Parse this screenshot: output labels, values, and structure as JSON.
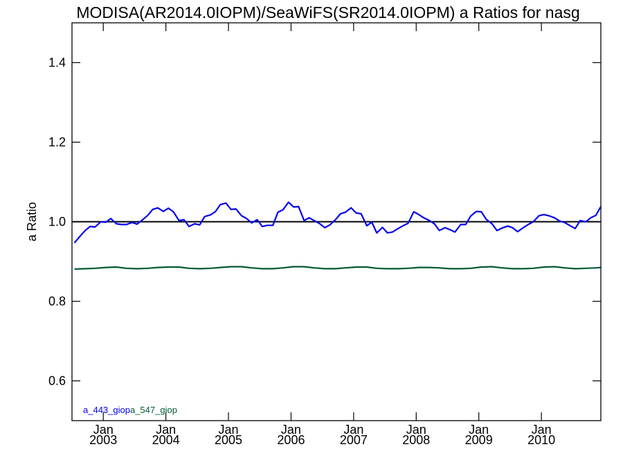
{
  "chart_data": {
    "type": "line",
    "title": "MODISA(AR2014.0IOPM)/SeaWiFS(SR2014.0IOPM)  a Ratios for nasg",
    "xlabel": "",
    "ylabel": "a Ratio",
    "xlim": [
      2002.5,
      2010.95
    ],
    "ylim": [
      0.5,
      1.5
    ],
    "y_ticks": [
      0.6,
      0.8,
      1.0,
      1.2,
      1.4
    ],
    "y_tick_labels": [
      "0.6",
      "0.8",
      "1.0",
      "1.2",
      "1.4"
    ],
    "x_ticks": [
      2003.0,
      2004.0,
      2005.0,
      2006.0,
      2007.0,
      2008.0,
      2009.0,
      2010.0
    ],
    "x_tick_month": "Jan",
    "x_tick_years": [
      "2003",
      "2004",
      "2005",
      "2006",
      "2007",
      "2008",
      "2009",
      "2010"
    ],
    "reference_line": 1.0,
    "grid": false,
    "legend_position": "bottom-left",
    "series": [
      {
        "name": "a_443_giop",
        "color": "#0000ee",
        "x": [
          2002.54,
          2002.62,
          2002.71,
          2002.79,
          2002.87,
          2002.96,
          2003.04,
          2003.12,
          2003.21,
          2003.29,
          2003.37,
          2003.46,
          2003.54,
          2003.62,
          2003.71,
          2003.79,
          2003.87,
          2003.96,
          2004.04,
          2004.12,
          2004.21,
          2004.29,
          2004.37,
          2004.46,
          2004.54,
          2004.62,
          2004.71,
          2004.79,
          2004.87,
          2004.96,
          2005.04,
          2005.12,
          2005.21,
          2005.29,
          2005.37,
          2005.46,
          2005.54,
          2005.62,
          2005.71,
          2005.79,
          2005.87,
          2005.96,
          2006.04,
          2006.12,
          2006.21,
          2006.29,
          2006.37,
          2006.46,
          2006.54,
          2006.62,
          2006.71,
          2006.79,
          2006.87,
          2006.96,
          2007.04,
          2007.12,
          2007.21,
          2007.29,
          2007.37,
          2007.46,
          2007.54,
          2007.62,
          2007.71,
          2007.79,
          2007.87,
          2007.96,
          2008.04,
          2008.12,
          2008.21,
          2008.29,
          2008.37,
          2008.46,
          2008.54,
          2008.62,
          2008.71,
          2008.79,
          2008.87,
          2008.96,
          2009.04,
          2009.12,
          2009.21,
          2009.29,
          2009.37,
          2009.46,
          2009.54,
          2009.62,
          2009.71,
          2009.79,
          2009.87,
          2009.96,
          2010.04,
          2010.12,
          2010.21,
          2010.29,
          2010.37,
          2010.46,
          2010.54,
          2010.62,
          2010.71,
          2010.79,
          2010.87,
          2010.95
        ],
        "values": [
          0.947,
          0.962,
          0.978,
          0.988,
          0.987,
          1.0,
          0.999,
          1.008,
          0.995,
          0.993,
          0.993,
          0.998,
          0.994,
          1.004,
          1.016,
          1.031,
          1.035,
          1.026,
          1.034,
          1.025,
          1.003,
          1.005,
          0.988,
          0.995,
          0.992,
          1.013,
          1.017,
          1.025,
          1.043,
          1.047,
          1.031,
          1.032,
          1.015,
          1.008,
          0.997,
          1.005,
          0.988,
          0.991,
          0.991,
          1.024,
          1.03,
          1.049,
          1.037,
          1.038,
          1.003,
          1.01,
          1.003,
          0.995,
          0.985,
          0.992,
          1.005,
          1.02,
          1.024,
          1.035,
          1.022,
          1.02,
          0.99,
          0.999,
          0.972,
          0.986,
          0.972,
          0.974,
          0.983,
          0.99,
          0.996,
          1.025,
          1.018,
          1.01,
          1.003,
          0.995,
          0.978,
          0.985,
          0.98,
          0.974,
          0.993,
          0.993,
          1.014,
          1.026,
          1.025,
          1.006,
          0.995,
          0.978,
          0.984,
          0.989,
          0.985,
          0.975,
          0.985,
          0.993,
          1.0,
          1.015,
          1.018,
          1.015,
          1.01,
          1.002,
          0.998,
          0.99,
          0.983,
          1.003,
          1.0,
          1.01,
          1.016,
          1.038
        ]
      },
      {
        "name": "a_547_giop",
        "color": "#005a32",
        "x": [
          2002.54,
          2002.71,
          2002.87,
          2003.04,
          2003.21,
          2003.37,
          2003.54,
          2003.71,
          2003.87,
          2004.04,
          2004.21,
          2004.37,
          2004.54,
          2004.71,
          2004.87,
          2005.04,
          2005.21,
          2005.37,
          2005.54,
          2005.71,
          2005.87,
          2006.04,
          2006.21,
          2006.37,
          2006.54,
          2006.71,
          2006.87,
          2007.04,
          2007.21,
          2007.37,
          2007.54,
          2007.71,
          2007.87,
          2008.04,
          2008.21,
          2008.37,
          2008.54,
          2008.71,
          2008.87,
          2009.04,
          2009.21,
          2009.37,
          2009.54,
          2009.71,
          2009.87,
          2010.04,
          2010.21,
          2010.37,
          2010.54,
          2010.71,
          2010.87,
          2010.95
        ],
        "values": [
          0.881,
          0.882,
          0.883,
          0.885,
          0.886,
          0.883,
          0.882,
          0.883,
          0.885,
          0.886,
          0.886,
          0.883,
          0.882,
          0.883,
          0.885,
          0.887,
          0.887,
          0.884,
          0.882,
          0.882,
          0.884,
          0.887,
          0.887,
          0.884,
          0.882,
          0.882,
          0.884,
          0.886,
          0.886,
          0.883,
          0.882,
          0.882,
          0.883,
          0.885,
          0.885,
          0.884,
          0.882,
          0.882,
          0.883,
          0.886,
          0.887,
          0.884,
          0.882,
          0.882,
          0.883,
          0.886,
          0.887,
          0.884,
          0.882,
          0.883,
          0.884,
          0.885
        ]
      }
    ]
  }
}
